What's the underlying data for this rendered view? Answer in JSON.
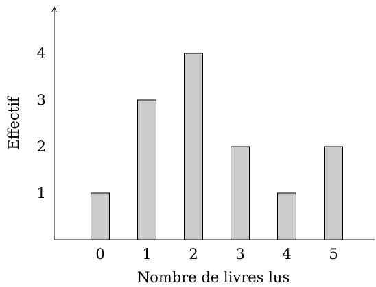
{
  "chart_data": {
    "type": "bar",
    "categories": [
      "0",
      "1",
      "2",
      "3",
      "4",
      "5"
    ],
    "values": [
      1,
      3,
      4,
      2,
      1,
      2
    ],
    "yticks": [
      "1",
      "2",
      "3",
      "4"
    ],
    "ylim": [
      0,
      5
    ],
    "xlabel": "Nombre de livres lus",
    "ylabel": "Effectif",
    "title": "",
    "grid": false,
    "bar_color": "#cccccc",
    "bar_edge_color": "#000000"
  }
}
